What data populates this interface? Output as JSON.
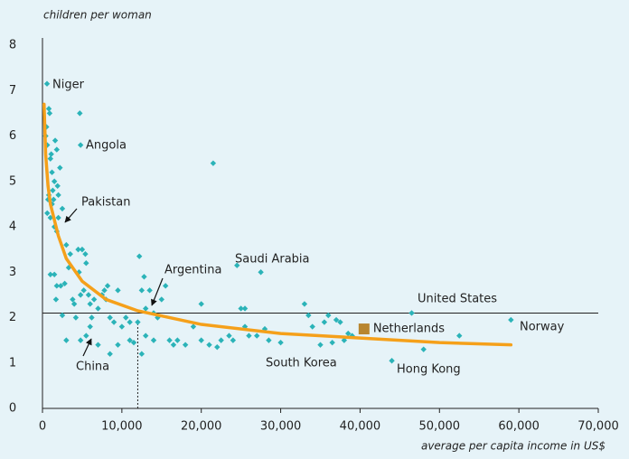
{
  "chart_data": {
    "type": "scatter",
    "y_axis_label": "children per woman",
    "x_axis_label": "average per capita income in US$",
    "xlim": [
      0,
      70000
    ],
    "xticks": [
      0,
      {
        "value": 10000,
        "label": "10,000"
      },
      {
        "value": 20000,
        "label": "20,000"
      },
      {
        "value": 30000,
        "label": "30,000"
      },
      {
        "value": 40000,
        "label": "40,000"
      },
      {
        "value": 50000,
        "label": "50,000"
      },
      {
        "value": 60000,
        "label": "60,000"
      },
      {
        "value": 70000,
        "label": "70,000"
      }
    ],
    "ylim": [
      0,
      8
    ],
    "yticks": [
      0,
      1,
      2,
      3,
      4,
      5,
      6,
      7,
      8
    ],
    "color": "#2bb3b8",
    "x": [
      570,
      4800,
      400,
      500,
      600,
      700,
      800,
      900,
      1000,
      1100,
      1200,
      1300,
      1400,
      1500,
      1600,
      1800,
      1900,
      2000,
      2200,
      800,
      600,
      1000,
      1200,
      1500,
      1800,
      2000,
      2500,
      1000,
      1500,
      1700,
      1800,
      2300,
      2500,
      2800,
      3000,
      3300,
      3500,
      3800,
      4000,
      4200,
      4500,
      4600,
      4800,
      5000,
      5200,
      5400,
      5500,
      5800,
      6000,
      6200,
      6500,
      7000,
      7500,
      7800,
      8000,
      8200,
      8500,
      9000,
      9500,
      10000,
      10500,
      11000,
      12000,
      12500,
      12800,
      13000,
      13500,
      14000,
      14500,
      15000,
      15500,
      12200,
      16000,
      16500,
      17000,
      18000,
      19000,
      20000,
      20000,
      21000,
      21500,
      22000,
      22500,
      23500,
      24000,
      24500,
      25000,
      25500,
      26000,
      27000,
      27500,
      28000,
      28500,
      30000,
      33000,
      33500,
      34000,
      35000,
      35500,
      36000,
      36500,
      37000,
      37500,
      38000,
      38500,
      39000,
      44000,
      46500,
      48000,
      52500,
      59000,
      4700,
      3000,
      4800,
      5500,
      6000,
      7000,
      8500,
      9500,
      11000,
      11500,
      12500,
      13000,
      14000,
      25500
    ],
    "values": [
      7.15,
      5.8,
      6.0,
      6.2,
      5.8,
      4.6,
      6.6,
      6.5,
      5.5,
      5.6,
      5.2,
      4.8,
      4.6,
      5.0,
      5.9,
      5.7,
      4.9,
      4.7,
      5.3,
      4.7,
      4.3,
      4.2,
      4.5,
      4.0,
      3.9,
      4.2,
      4.4,
      2.95,
      2.95,
      2.4,
      2.7,
      2.7,
      2.05,
      2.75,
      3.6,
      3.1,
      3.4,
      2.4,
      2.3,
      2.0,
      3.5,
      3.0,
      2.5,
      3.5,
      2.6,
      3.4,
      3.2,
      2.5,
      2.3,
      2.0,
      2.4,
      2.2,
      2.5,
      2.6,
      2.4,
      2.7,
      2.0,
      1.9,
      2.6,
      1.8,
      2.0,
      1.9,
      1.9,
      2.6,
      2.9,
      2.2,
      2.6,
      2.1,
      2.0,
      2.4,
      2.7,
      3.35,
      1.5,
      1.4,
      1.5,
      1.4,
      1.8,
      2.3,
      1.5,
      1.4,
      5.4,
      1.35,
      1.5,
      1.6,
      1.5,
      3.15,
      2.2,
      1.8,
      1.6,
      1.6,
      3.0,
      1.75,
      1.5,
      1.45,
      2.3,
      2.05,
      1.8,
      1.4,
      1.9,
      2.05,
      1.45,
      1.95,
      1.9,
      1.5,
      1.65,
      1.6,
      1.05,
      2.1,
      1.3,
      1.6,
      1.95,
      6.5,
      1.5,
      1.5,
      1.6,
      1.8,
      1.4,
      1.2,
      1.4,
      1.5,
      1.45,
      1.2,
      1.6,
      1.5,
      2.2
    ],
    "trend": {
      "color": "#f5a01a",
      "x": [
        200,
        400,
        700,
        1000,
        2000,
        3000,
        5000,
        8000,
        12000,
        20000,
        30000,
        40000,
        50000,
        59000
      ],
      "values": [
        6.7,
        5.6,
        4.9,
        4.5,
        3.8,
        3.3,
        2.8,
        2.4,
        2.15,
        1.85,
        1.65,
        1.55,
        1.45,
        1.4
      ]
    },
    "highlight": {
      "name": "Netherlands",
      "x": 40500,
      "value": 1.75,
      "color": "#b8862f"
    },
    "hline": 2.1,
    "vline": 12000,
    "annotations": [
      "Niger",
      "Angola",
      "Pakistan",
      "Saudi Arabia",
      "Argentina",
      "United States",
      "Norway",
      "China",
      "South Korea",
      "Hong Kong"
    ]
  }
}
